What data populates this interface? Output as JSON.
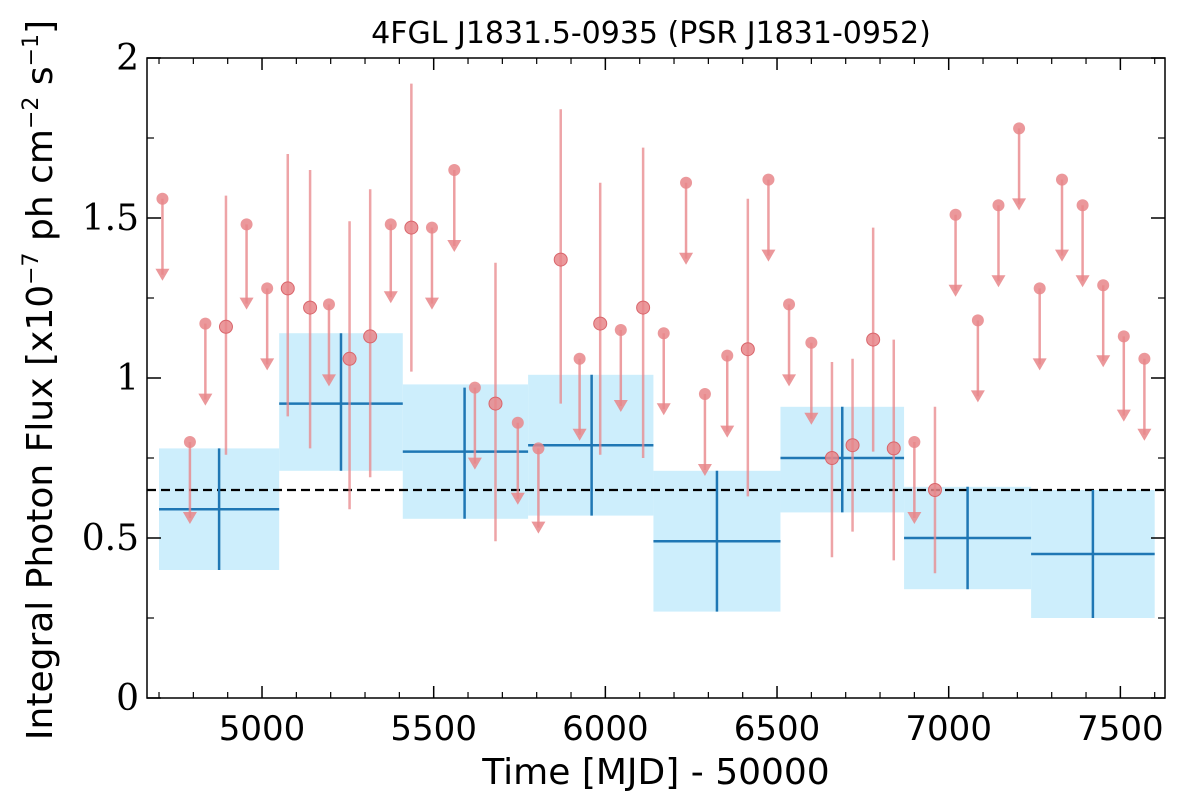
{
  "chart_data": {
    "type": "scatter",
    "title": "4FGL J1831.5-0935 (PSR J1831-0952)",
    "xlabel": "Time [MJD] - 50000",
    "ylabel": "Integral Photon Flux [x10",
    "ylabel_exp1": "−7",
    "ylabel_mid": " ph cm",
    "ylabel_exp2": "−2",
    "ylabel_end": " s",
    "ylabel_exp3": "−1",
    "ylabel_close": "]",
    "xlim": [
      4665,
      7630
    ],
    "ylim": [
      0,
      2
    ],
    "xticks": [
      5000,
      5500,
      6000,
      6500,
      7000,
      7500
    ],
    "yticks": [
      0,
      0.5,
      1,
      1.5,
      2
    ],
    "ytick_labels": [
      "0",
      "0.5",
      "1",
      "1.5",
      "2"
    ],
    "xminor_step": 100,
    "yminor_step": 0.25,
    "reference_level": 0.65,
    "colors": {
      "bin_fill": "#cdeefc",
      "bin_line": "#1f77b4",
      "points": "#e8868a",
      "reference": "#000000"
    },
    "bins": [
      {
        "x0": 4700,
        "x1": 5050,
        "x": 4875,
        "y": 0.59,
        "ylo": 0.4,
        "yhi": 0.78,
        "band_lo": 0.4,
        "band_hi": 0.78
      },
      {
        "x0": 5050,
        "x1": 5410,
        "x": 5230,
        "y": 0.92,
        "ylo": 0.71,
        "yhi": 1.14,
        "band_lo": 0.71,
        "band_hi": 1.14
      },
      {
        "x0": 5410,
        "x1": 5775,
        "x": 5590,
        "y": 0.77,
        "ylo": 0.56,
        "yhi": 0.97,
        "band_lo": 0.56,
        "band_hi": 0.98
      },
      {
        "x0": 5775,
        "x1": 6140,
        "x": 5960,
        "y": 0.79,
        "ylo": 0.57,
        "yhi": 1.01,
        "band_lo": 0.57,
        "band_hi": 1.01
      },
      {
        "x0": 6140,
        "x1": 6510,
        "x": 6325,
        "y": 0.49,
        "ylo": 0.27,
        "yhi": 0.71,
        "band_lo": 0.27,
        "band_hi": 0.71
      },
      {
        "x0": 6510,
        "x1": 6870,
        "x": 6690,
        "y": 0.75,
        "ylo": 0.58,
        "yhi": 0.91,
        "band_lo": 0.58,
        "band_hi": 0.91
      },
      {
        "x0": 6870,
        "x1": 7240,
        "x": 7055,
        "y": 0.5,
        "ylo": 0.34,
        "yhi": 0.66,
        "band_lo": 0.34,
        "band_hi": 0.66
      },
      {
        "x0": 7240,
        "x1": 7600,
        "x": 7420,
        "y": 0.45,
        "ylo": 0.25,
        "yhi": 0.65,
        "band_lo": 0.25,
        "band_hi": 0.65
      }
    ],
    "detections": [
      {
        "x": 4895,
        "y": 1.16,
        "ylo": 0.76,
        "yhi": 1.57
      },
      {
        "x": 5075,
        "y": 1.28,
        "ylo": 0.88,
        "yhi": 1.7
      },
      {
        "x": 5140,
        "y": 1.22,
        "ylo": 0.78,
        "yhi": 1.65
      },
      {
        "x": 5255,
        "y": 1.06,
        "ylo": 0.59,
        "yhi": 1.49
      },
      {
        "x": 5315,
        "y": 1.13,
        "ylo": 0.69,
        "yhi": 1.59
      },
      {
        "x": 5435,
        "y": 1.47,
        "ylo": 1.02,
        "yhi": 1.92
      },
      {
        "x": 5680,
        "y": 0.92,
        "ylo": 0.49,
        "yhi": 1.36
      },
      {
        "x": 5870,
        "y": 1.37,
        "ylo": 0.92,
        "yhi": 1.84
      },
      {
        "x": 5985,
        "y": 1.17,
        "ylo": 0.76,
        "yhi": 1.61
      },
      {
        "x": 6110,
        "y": 1.22,
        "ylo": 0.75,
        "yhi": 1.72
      },
      {
        "x": 6415,
        "y": 1.09,
        "ylo": 0.63,
        "yhi": 1.56
      },
      {
        "x": 6660,
        "y": 0.75,
        "ylo": 0.44,
        "yhi": 1.05
      },
      {
        "x": 6720,
        "y": 0.79,
        "ylo": 0.52,
        "yhi": 1.06
      },
      {
        "x": 6780,
        "y": 1.12,
        "ylo": 0.77,
        "yhi": 1.47
      },
      {
        "x": 6840,
        "y": 0.78,
        "ylo": 0.43,
        "yhi": 1.12
      },
      {
        "x": 6960,
        "y": 0.65,
        "ylo": 0.39,
        "yhi": 0.91
      }
    ],
    "upper_limits": [
      {
        "x": 4710,
        "y": 1.56,
        "y_arrow": 1.31
      },
      {
        "x": 4790,
        "y": 0.8,
        "y_arrow": 0.55
      },
      {
        "x": 4835,
        "y": 1.17,
        "y_arrow": 0.92
      },
      {
        "x": 4955,
        "y": 1.48,
        "y_arrow": 1.22
      },
      {
        "x": 5015,
        "y": 1.28,
        "y_arrow": 1.03
      },
      {
        "x": 5195,
        "y": 1.23,
        "y_arrow": 0.98
      },
      {
        "x": 5375,
        "y": 1.48,
        "y_arrow": 1.24
      },
      {
        "x": 5495,
        "y": 1.47,
        "y_arrow": 1.22
      },
      {
        "x": 5560,
        "y": 1.65,
        "y_arrow": 1.4
      },
      {
        "x": 5620,
        "y": 0.97,
        "y_arrow": 0.72
      },
      {
        "x": 5745,
        "y": 0.86,
        "y_arrow": 0.61
      },
      {
        "x": 5805,
        "y": 0.78,
        "y_arrow": 0.52
      },
      {
        "x": 5925,
        "y": 1.06,
        "y_arrow": 0.81
      },
      {
        "x": 6045,
        "y": 1.15,
        "y_arrow": 0.9
      },
      {
        "x": 6170,
        "y": 1.14,
        "y_arrow": 0.89
      },
      {
        "x": 6235,
        "y": 1.61,
        "y_arrow": 1.36
      },
      {
        "x": 6290,
        "y": 0.95,
        "y_arrow": 0.7
      },
      {
        "x": 6355,
        "y": 1.07,
        "y_arrow": 0.82
      },
      {
        "x": 6475,
        "y": 1.62,
        "y_arrow": 1.37
      },
      {
        "x": 6535,
        "y": 1.23,
        "y_arrow": 0.98
      },
      {
        "x": 6600,
        "y": 1.11,
        "y_arrow": 0.86
      },
      {
        "x": 6900,
        "y": 0.8,
        "y_arrow": 0.55
      },
      {
        "x": 7020,
        "y": 1.51,
        "y_arrow": 1.26
      },
      {
        "x": 7085,
        "y": 1.18,
        "y_arrow": 0.93
      },
      {
        "x": 7145,
        "y": 1.54,
        "y_arrow": 1.29
      },
      {
        "x": 7205,
        "y": 1.78,
        "y_arrow": 1.53
      },
      {
        "x": 7265,
        "y": 1.28,
        "y_arrow": 1.03
      },
      {
        "x": 7330,
        "y": 1.62,
        "y_arrow": 1.37
      },
      {
        "x": 7390,
        "y": 1.54,
        "y_arrow": 1.29
      },
      {
        "x": 7450,
        "y": 1.29,
        "y_arrow": 1.04
      },
      {
        "x": 7510,
        "y": 1.13,
        "y_arrow": 0.87
      },
      {
        "x": 7570,
        "y": 1.06,
        "y_arrow": 0.81
      }
    ]
  }
}
